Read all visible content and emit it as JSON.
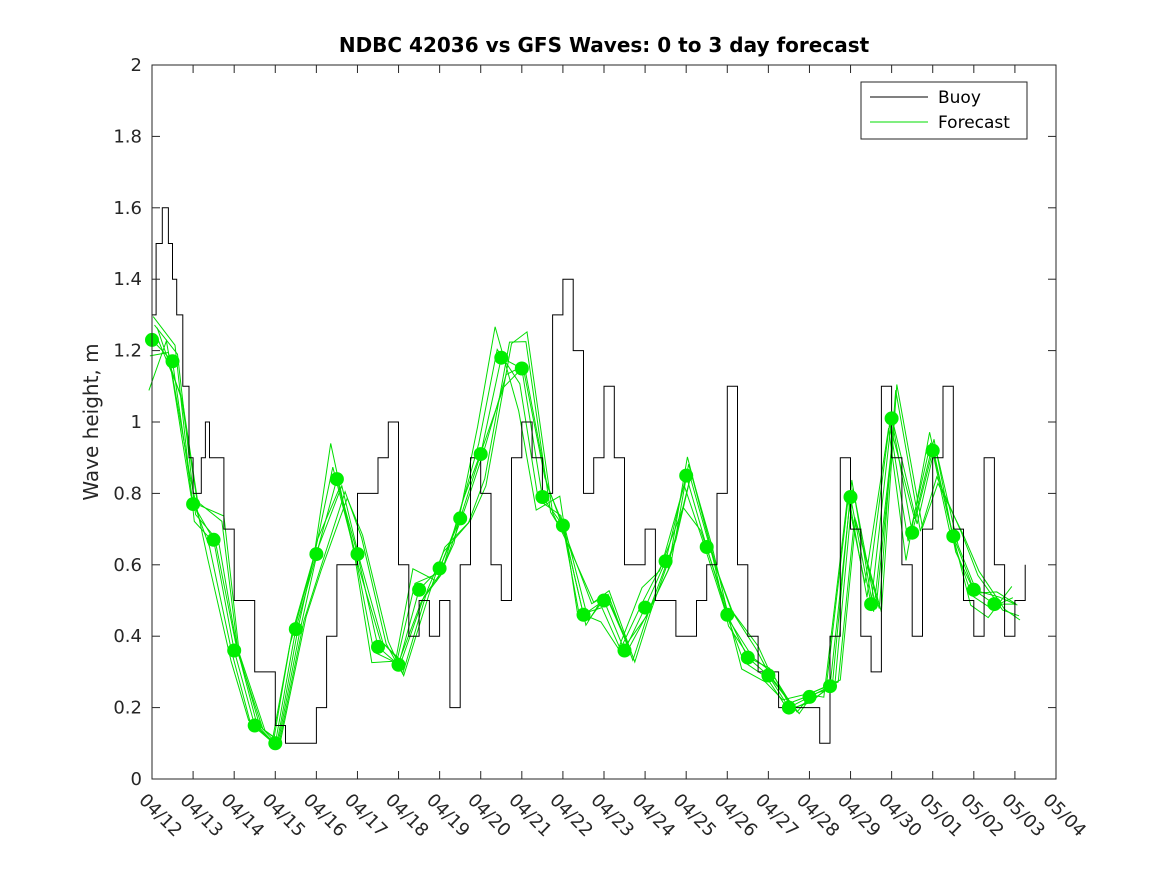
{
  "chart_data": {
    "type": "line",
    "title": "NDBC 42036 vs GFS Waves: 0 to 3 day forecast",
    "xlabel": "",
    "ylabel": "Wave height, m",
    "ylim": [
      0,
      2
    ],
    "yticks": [
      "0",
      "0.2",
      "0.4",
      "0.6",
      "0.8",
      "1",
      "1.2",
      "1.4",
      "1.6",
      "1.8",
      "2"
    ],
    "xlim_days": [
      0,
      22
    ],
    "xticks": [
      "04/12",
      "04/13",
      "04/14",
      "04/15",
      "04/16",
      "04/17",
      "04/18",
      "04/19",
      "04/20",
      "04/21",
      "04/22",
      "04/23",
      "04/24",
      "04/25",
      "04/26",
      "04/27",
      "04/28",
      "04/29",
      "04/30",
      "05/01",
      "05/02",
      "05/03",
      "05/04"
    ],
    "grid": false,
    "legend_position": "top-right",
    "colors": {
      "buoy": "#000000",
      "forecast": "#00dd00",
      "marker": "#00ee00"
    },
    "series": [
      {
        "name": "Buoy",
        "x": [
          0,
          0.1,
          0.25,
          0.4,
          0.5,
          0.6,
          0.75,
          0.9,
          1.0,
          1.1,
          1.2,
          1.3,
          1.4,
          1.5,
          1.75,
          2.0,
          2.5,
          3.0,
          3.25,
          3.5,
          3.75,
          4.0,
          4.25,
          4.5,
          4.75,
          5.0,
          5.5,
          5.75,
          6.0,
          6.25,
          6.5,
          6.75,
          7.0,
          7.25,
          7.5,
          7.75,
          8.0,
          8.25,
          8.5,
          8.75,
          9.0,
          9.25,
          9.5,
          9.75,
          10.0,
          10.25,
          10.5,
          10.75,
          11.0,
          11.25,
          11.5,
          11.75,
          12.0,
          12.25,
          12.5,
          12.75,
          13.0,
          13.25,
          13.5,
          13.75,
          14.0,
          14.25,
          14.5,
          14.75,
          15.0,
          15.25,
          15.5,
          15.75,
          16.0,
          16.25,
          16.5,
          16.75,
          17.0,
          17.25,
          17.5,
          17.75,
          18.0,
          18.25,
          18.5,
          18.75,
          19.0,
          19.25,
          19.5,
          19.75,
          20.0,
          20.25,
          20.5,
          20.75,
          21.0,
          21.25
        ],
        "values": [
          1.3,
          1.5,
          1.6,
          1.5,
          1.4,
          1.3,
          1.1,
          0.9,
          0.8,
          0.8,
          0.9,
          1.0,
          0.9,
          0.9,
          0.7,
          0.5,
          0.3,
          0.15,
          0.1,
          0.1,
          0.1,
          0.2,
          0.4,
          0.6,
          0.6,
          0.8,
          0.9,
          1.0,
          0.6,
          0.4,
          0.5,
          0.4,
          0.5,
          0.2,
          0.6,
          0.9,
          0.8,
          0.6,
          0.5,
          0.9,
          1.0,
          0.9,
          0.8,
          1.3,
          1.4,
          1.2,
          0.8,
          0.9,
          1.1,
          0.9,
          0.6,
          0.6,
          0.7,
          0.5,
          0.5,
          0.4,
          0.4,
          0.5,
          0.6,
          0.8,
          1.1,
          0.6,
          0.4,
          0.3,
          0.3,
          0.2,
          0.2,
          0.2,
          0.2,
          0.1,
          0.4,
          0.9,
          0.7,
          0.4,
          0.3,
          1.1,
          0.9,
          0.6,
          0.4,
          0.7,
          0.9,
          1.1,
          0.7,
          0.5,
          0.4,
          0.9,
          0.6,
          0.4,
          0.5,
          0.6
        ]
      },
      {
        "name": "Forecast",
        "x": [
          0,
          0.5,
          1.0,
          1.5,
          2.0,
          2.5,
          3.0,
          3.5,
          4.0,
          4.5,
          5.0,
          5.5,
          6.0,
          6.5,
          7.0,
          7.5,
          8.0,
          8.5,
          9.0,
          9.5,
          10.0,
          10.5,
          11.0,
          11.5,
          12.0,
          12.5,
          13.0,
          13.5,
          14.0,
          14.5,
          15.0,
          15.5,
          16.0,
          16.5,
          17.0,
          17.5,
          18.0,
          18.5,
          19.0,
          19.5,
          20.0,
          20.5,
          21.0
        ],
        "values": [
          1.23,
          1.17,
          0.77,
          0.67,
          0.36,
          0.15,
          0.1,
          0.42,
          0.63,
          0.84,
          0.63,
          0.37,
          0.32,
          0.53,
          0.59,
          0.73,
          0.91,
          1.18,
          1.15,
          0.79,
          0.71,
          0.46,
          0.5,
          0.36,
          0.48,
          0.61,
          0.85,
          0.65,
          0.46,
          0.34,
          0.29,
          0.2,
          0.23,
          0.26,
          0.79,
          0.49,
          1.01,
          0.69,
          0.92,
          0.68,
          0.53,
          0.49,
          0.49
        ]
      }
    ]
  }
}
